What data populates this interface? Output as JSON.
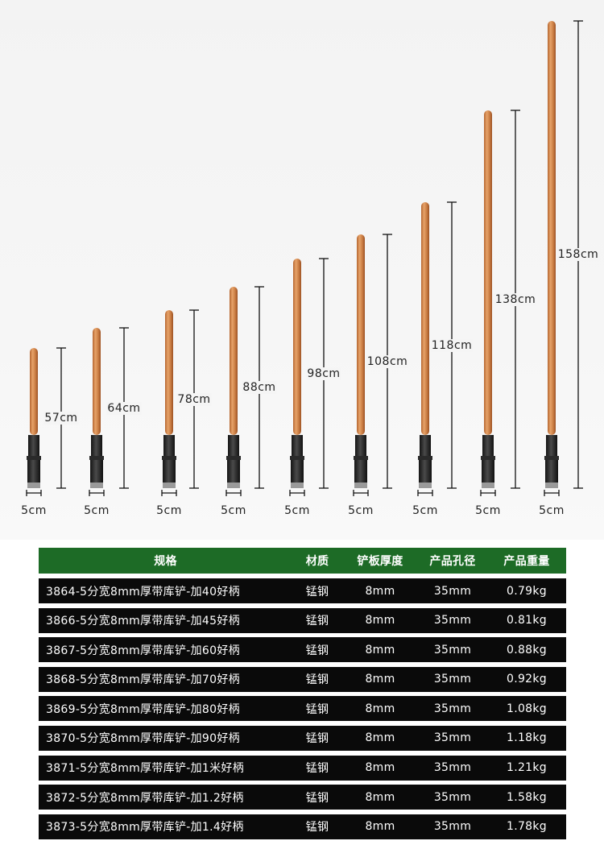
{
  "products": [
    {
      "length_label": "57cm",
      "width_label": "5cm"
    },
    {
      "length_label": "64cm",
      "width_label": "5cm"
    },
    {
      "length_label": "78cm",
      "width_label": "5cm"
    },
    {
      "length_label": "88cm",
      "width_label": "5cm"
    },
    {
      "length_label": "98cm",
      "width_label": "5cm"
    },
    {
      "length_label": "108cm",
      "width_label": "5cm"
    },
    {
      "length_label": "118cm",
      "width_label": "5cm"
    },
    {
      "length_label": "138cm",
      "width_label": "5cm"
    },
    {
      "length_label": "158cm",
      "width_label": "5cm"
    }
  ],
  "table": {
    "header_color": "#1d6b26",
    "row_color": "#0a0a0a",
    "headers": [
      "规格",
      "材质",
      "铲板厚度",
      "产品孔径",
      "产品重量"
    ],
    "rows": [
      [
        "3864-5分宽8mm厚带库铲-加40好柄",
        "锰钢",
        "8mm",
        "35mm",
        "0.79kg"
      ],
      [
        "3866-5分宽8mm厚带库铲-加45好柄",
        "锰钢",
        "8mm",
        "35mm",
        "0.81kg"
      ],
      [
        "3867-5分宽8mm厚带库铲-加60好柄",
        "锰钢",
        "8mm",
        "35mm",
        "0.88kg"
      ],
      [
        "3868-5分宽8mm厚带库铲-加70好柄",
        "锰钢",
        "8mm",
        "35mm",
        "0.92kg"
      ],
      [
        "3869-5分宽8mm厚带库铲-加80好柄",
        "锰钢",
        "8mm",
        "35mm",
        "1.08kg"
      ],
      [
        "3870-5分宽8mm厚带库铲-加90好柄",
        "锰钢",
        "8mm",
        "35mm",
        "1.18kg"
      ],
      [
        "3871-5分宽8mm厚带库铲-加1米好柄",
        "锰钢",
        "8mm",
        "35mm",
        "1.21kg"
      ],
      [
        "3872-5分宽8mm厚带库铲-加1.2好柄",
        "锰钢",
        "8mm",
        "35mm",
        "1.58kg"
      ],
      [
        "3873-5分宽8mm厚带库铲-加1.4好柄",
        "锰钢",
        "8mm",
        "35mm",
        "1.78kg"
      ]
    ]
  }
}
